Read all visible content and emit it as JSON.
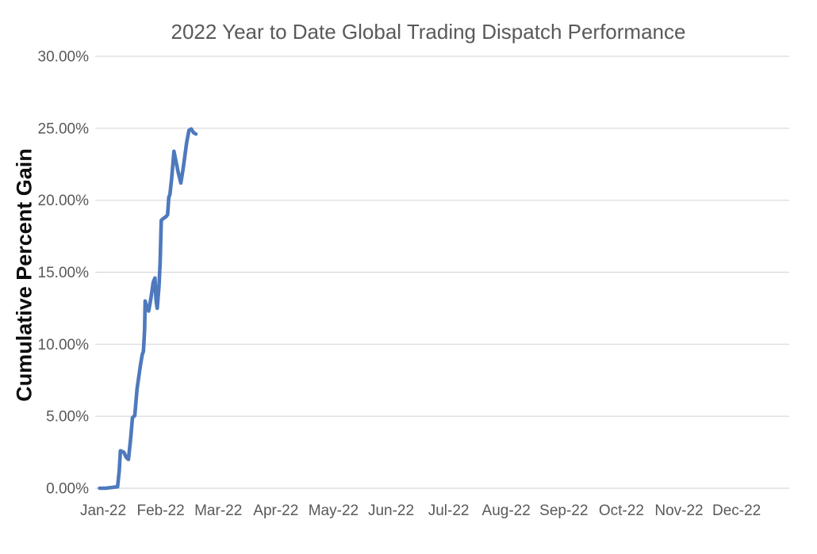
{
  "chart_data": {
    "type": "line",
    "title": "2022 Year to Date Global Trading Dispatch Performance",
    "y_axis_title": "Cumulative Percent Gain",
    "legend": "none",
    "grid": "horizontal",
    "background": "#ffffff",
    "colors": {
      "line": "#4E79BD",
      "grid": "#D9D9D9",
      "tick_text": "#595959",
      "title_text": "#595959",
      "y_title_text": "#0D0D0D"
    },
    "x_axis": {
      "tick_labels": [
        "Jan-22",
        "Feb-22",
        "Mar-22",
        "Apr-22",
        "May-22",
        "Jun-22",
        "Jul-22",
        "Aug-22",
        "Sep-22",
        "Oct-22",
        "Nov-22",
        "Dec-22"
      ],
      "unit": "month"
    },
    "y_axis": {
      "tick_labels": [
        "0.00%",
        "5.00%",
        "10.00%",
        "15.00%",
        "20.00%",
        "25.00%",
        "30.00%"
      ],
      "tick_values": [
        0,
        5,
        10,
        15,
        20,
        25,
        30
      ],
      "range": [
        0,
        30
      ]
    },
    "series": [
      {
        "name": "Cumulative Percent Gain",
        "x_unit": "months_after_Jan-22_tick",
        "y_unit": "percent",
        "final_value_pct": 24.6,
        "points": [
          [
            -0.06,
            0.0
          ],
          [
            0.04,
            0.0
          ],
          [
            0.14,
            0.05
          ],
          [
            0.25,
            0.1
          ],
          [
            0.28,
            1.2
          ],
          [
            0.3,
            2.6
          ],
          [
            0.36,
            2.5
          ],
          [
            0.4,
            2.15
          ],
          [
            0.44,
            2.0
          ],
          [
            0.48,
            3.5
          ],
          [
            0.51,
            4.9
          ],
          [
            0.55,
            5.05
          ],
          [
            0.59,
            6.9
          ],
          [
            0.65,
            8.6
          ],
          [
            0.68,
            9.3
          ],
          [
            0.7,
            9.5
          ],
          [
            0.72,
            11.0
          ],
          [
            0.73,
            13.0
          ],
          [
            0.76,
            12.55
          ],
          [
            0.79,
            12.3
          ],
          [
            0.83,
            13.2
          ],
          [
            0.87,
            14.3
          ],
          [
            0.9,
            14.6
          ],
          [
            0.92,
            13.0
          ],
          [
            0.94,
            12.5
          ],
          [
            0.97,
            14.0
          ],
          [
            0.99,
            15.7
          ],
          [
            1.01,
            18.6
          ],
          [
            1.05,
            18.75
          ],
          [
            1.09,
            18.85
          ],
          [
            1.12,
            19.0
          ],
          [
            1.14,
            20.2
          ],
          [
            1.16,
            20.4
          ],
          [
            1.19,
            21.5
          ],
          [
            1.23,
            23.4
          ],
          [
            1.26,
            22.8
          ],
          [
            1.3,
            22.0
          ],
          [
            1.35,
            21.2
          ],
          [
            1.39,
            22.2
          ],
          [
            1.45,
            24.0
          ],
          [
            1.49,
            24.85
          ],
          [
            1.53,
            24.95
          ],
          [
            1.57,
            24.7
          ],
          [
            1.61,
            24.6
          ]
        ]
      }
    ]
  }
}
